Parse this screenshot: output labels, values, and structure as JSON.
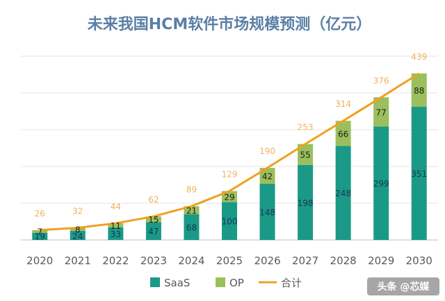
{
  "chart_data": {
    "type": "bar",
    "stacked": true,
    "title": "未来我国HCM软件市场规模预测（亿元）",
    "categories": [
      "2020",
      "2021",
      "2022",
      "2023",
      "2024",
      "2025",
      "2026",
      "2027",
      "2028",
      "2029",
      "2030"
    ],
    "series": [
      {
        "name": "SaaS",
        "kind": "bar",
        "color": "#1a9a86",
        "values": [
          19,
          24,
          33,
          47,
          68,
          100,
          148,
          198,
          248,
          299,
          351
        ]
      },
      {
        "name": "OP",
        "kind": "bar",
        "color": "#9bbf5c",
        "values": [
          7,
          8,
          11,
          15,
          21,
          29,
          42,
          55,
          66,
          77,
          88
        ]
      },
      {
        "name": "合计",
        "kind": "line",
        "color": "#f0a020",
        "values": [
          26,
          32,
          44,
          62,
          89,
          129,
          190,
          253,
          314,
          376,
          439
        ]
      }
    ],
    "ylim": [
      0,
      460
    ],
    "grid": true,
    "legend": "bottom"
  },
  "watermark": {
    "text": "头条 @芯媒"
  }
}
